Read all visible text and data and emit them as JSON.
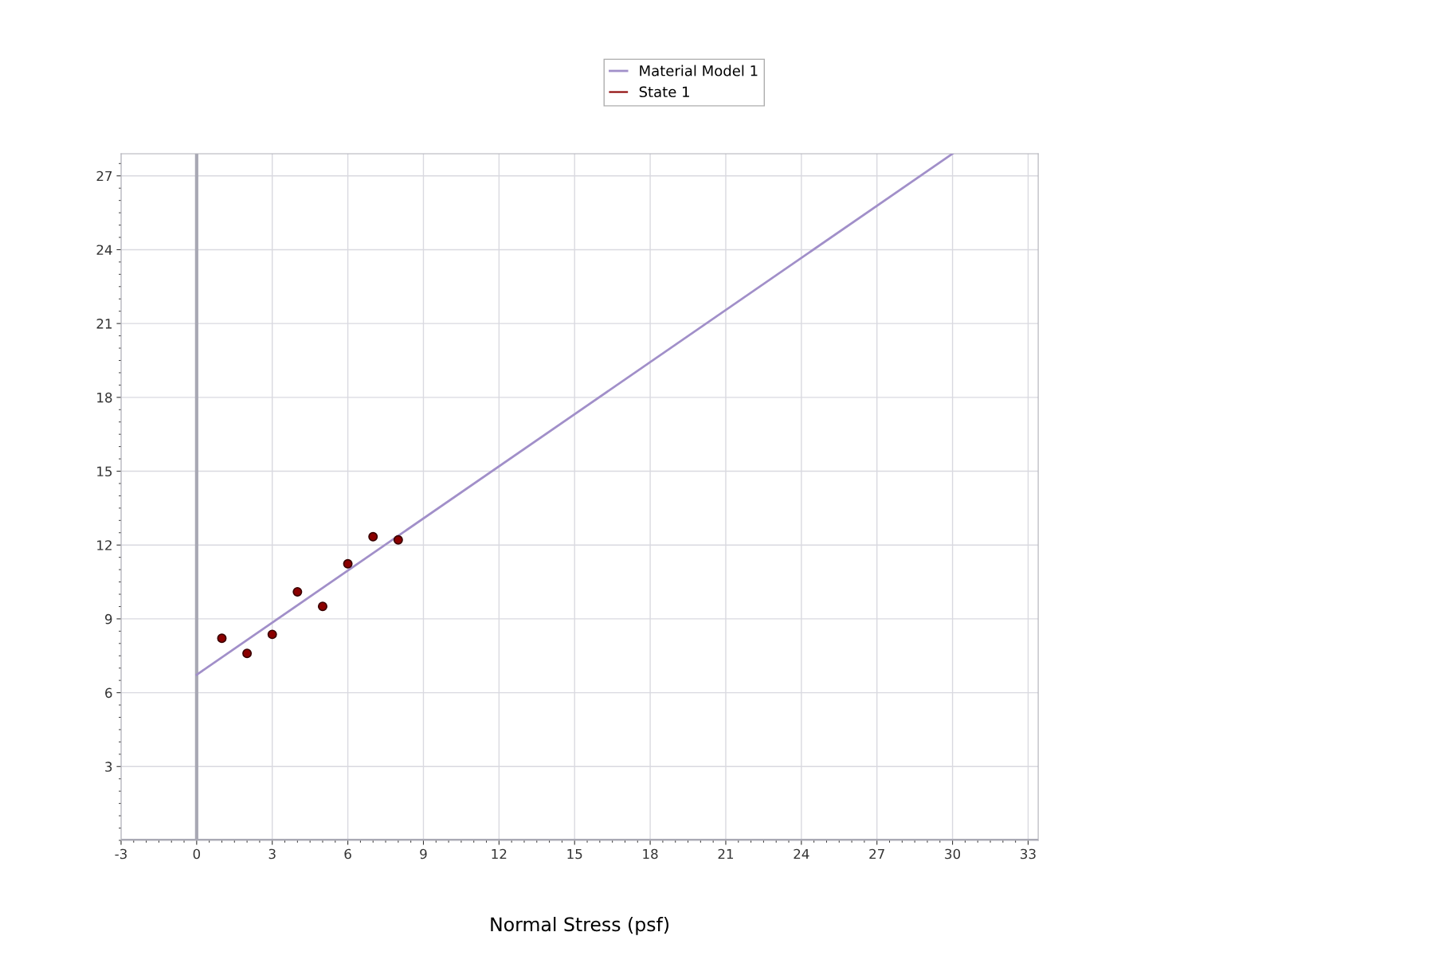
{
  "chart_data": {
    "type": "scatter",
    "xlabel": "Normal Stress (psf)",
    "series": [
      {
        "name": "Material Model 1",
        "type": "line",
        "color": "#a18fc9",
        "x": [
          0,
          30
        ],
        "values": [
          6.73,
          27.9
        ],
        "marker": "none",
        "line_style": "solid"
      },
      {
        "name": "State 1",
        "color": "#8b0000",
        "x": [
          1,
          2,
          3,
          4,
          5,
          6,
          7,
          8
        ],
        "values": [
          8.21,
          7.6,
          8.37,
          10.1,
          9.51,
          11.24,
          12.34,
          12.21
        ],
        "marker": "circle"
      }
    ],
    "xlim": [
      -3,
      33.4
    ],
    "ylim": [
      0,
      27.9
    ],
    "xticks": [
      -3,
      0,
      3,
      6,
      9,
      12,
      15,
      18,
      21,
      24,
      27,
      30,
      33
    ],
    "yticks": [
      3,
      6,
      9,
      12,
      15,
      18,
      21,
      24,
      27
    ],
    "grid": true,
    "legend": "top"
  }
}
